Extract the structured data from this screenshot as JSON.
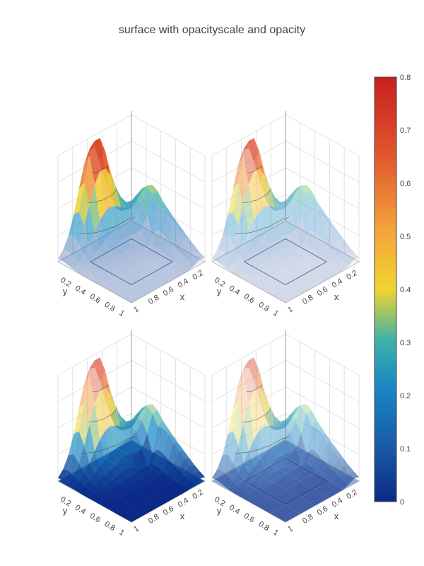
{
  "title": "surface with opacityscale and opacity",
  "chart_data": {
    "type": "surface",
    "title": "surface with opacityscale and opacity",
    "x_range": [
      0,
      1
    ],
    "y_range": [
      0,
      1
    ],
    "z_range": [
      0,
      0.8
    ],
    "x_ticks": [
      "0.2",
      "0.4",
      "0.6",
      "0.8",
      "1"
    ],
    "y_ticks": [
      "0.2",
      "0.4",
      "0.6",
      "0.8",
      "1"
    ],
    "xlabel": "x",
    "ylabel": "y",
    "grid": true,
    "colorscale": [
      "#0b2a87",
      "#1a86c4",
      "#3fb2a6",
      "#a4c54a",
      "#f0d431",
      "#f3a43b",
      "#e0552e",
      "#c81f1f"
    ],
    "colorbar": {
      "min": 0,
      "max": 0.8,
      "ticks": [
        "0",
        "0.1",
        "0.2",
        "0.3",
        "0.4",
        "0.5",
        "0.6",
        "0.7",
        "0.8"
      ]
    },
    "series": [
      {
        "subplot": "top-left",
        "opacity": "opacityscale applied",
        "floor": "light"
      },
      {
        "subplot": "top-right",
        "opacity": "opacityscale + opacity 0.5",
        "floor": "very light"
      },
      {
        "subplot": "bottom-left",
        "opacity": "reversed opacityscale",
        "floor": "opaque"
      },
      {
        "subplot": "bottom-right",
        "opacity": "reversed opacityscale + opacity 0.5",
        "floor": "semi-transparent"
      }
    ]
  }
}
